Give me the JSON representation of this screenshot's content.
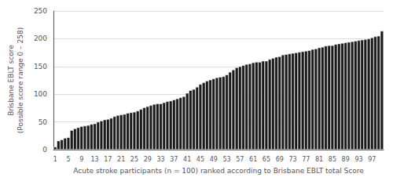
{
  "chart_data": {
    "type": "bar",
    "xlabel": "Acute stroke participants (n = 100) ranked according to Brisbane EBLT total Score",
    "ylabel": "Brisbane EBLT score\n(Possible score range 0 – 258)",
    "categories": [
      "1",
      null,
      null,
      null,
      "5",
      null,
      null,
      null,
      "9",
      null,
      null,
      null,
      "13",
      null,
      null,
      null,
      "17",
      null,
      null,
      null,
      "21",
      null,
      null,
      null,
      "25",
      null,
      null,
      null,
      "29",
      null,
      null,
      null,
      "33",
      null,
      null,
      null,
      "37",
      null,
      null,
      null,
      "41",
      null,
      null,
      null,
      "45",
      null,
      null,
      null,
      "49",
      null,
      null,
      null,
      "53",
      null,
      null,
      null,
      "57",
      null,
      null,
      null,
      "61",
      null,
      null,
      null,
      "65",
      null,
      null,
      null,
      "69",
      null,
      null,
      null,
      "73",
      null,
      null,
      null,
      "77",
      null,
      null,
      null,
      "81",
      null,
      null,
      null,
      "85",
      null,
      null,
      null,
      "89",
      null,
      null,
      null,
      "93",
      null,
      null,
      null,
      "97",
      null,
      null,
      null
    ],
    "values": [
      5,
      16,
      18,
      21,
      22,
      35,
      38,
      40,
      42,
      43,
      44,
      46,
      47,
      50,
      52,
      54,
      55,
      57,
      60,
      62,
      63,
      64,
      66,
      67,
      68,
      70,
      73,
      76,
      78,
      80,
      82,
      83,
      83,
      85,
      87,
      88,
      90,
      92,
      94,
      96,
      102,
      107,
      109,
      113,
      118,
      121,
      124,
      126,
      128,
      130,
      131,
      132,
      135,
      140,
      144,
      148,
      150,
      152,
      154,
      155,
      157,
      158,
      158,
      160,
      160,
      163,
      165,
      167,
      168,
      171,
      172,
      173,
      174,
      175,
      176,
      177,
      178,
      179,
      181,
      182,
      184,
      185,
      187,
      188,
      188,
      190,
      191,
      192,
      193,
      194,
      195,
      196,
      197,
      198,
      199,
      200,
      202,
      204,
      205,
      214
    ],
    "color": "#1a1a1a",
    "ylim": [
      0,
      250
    ],
    "yticks": [
      0,
      50,
      100,
      150,
      200,
      250
    ],
    "grid": true
  }
}
